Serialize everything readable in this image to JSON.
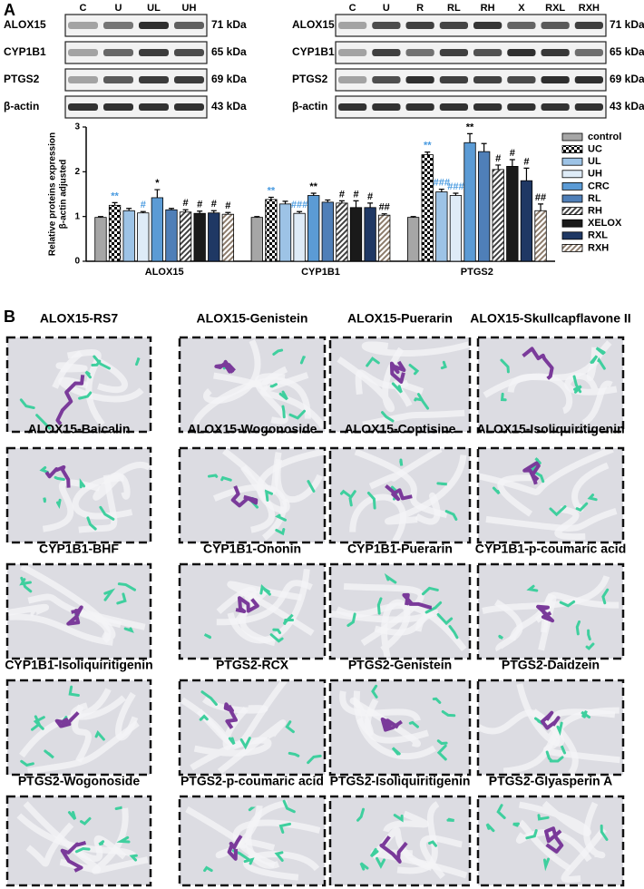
{
  "panel_a": {
    "label": "A",
    "blots": [
      {
        "lanes": [
          "C",
          "U",
          "UL",
          "UH"
        ],
        "rows": [
          {
            "protein": "ALOX15",
            "size": "71 kDa"
          },
          {
            "protein": "CYP1B1",
            "size": "65 kDa"
          },
          {
            "protein": "PTGS2",
            "size": "69 kDa"
          },
          {
            "protein": "β-actin",
            "size": "43 kDa"
          }
        ]
      },
      {
        "lanes": [
          "C",
          "U",
          "R",
          "RL",
          "RH",
          "X",
          "RXL",
          "RXH"
        ],
        "rows": [
          {
            "protein": "ALOX15",
            "size": "71 kDa"
          },
          {
            "protein": "CYP1B1",
            "size": "65 kDa"
          },
          {
            "protein": "PTGS2",
            "size": "69 kDa"
          },
          {
            "protein": "β-actin",
            "size": "43 kDa"
          }
        ]
      }
    ]
  },
  "chart_data": {
    "type": "bar",
    "ylabel": [
      "Relative proteins expression",
      "β-actin adjusted"
    ],
    "categories": [
      "ALOX15",
      "CYP1B1",
      "PTGS2"
    ],
    "ylim": [
      0,
      3
    ],
    "yticks": [
      0,
      1,
      2,
      3
    ],
    "series": [
      {
        "name": "control",
        "color": "#a6a6a6",
        "values": [
          0.98,
          0.98,
          0.98
        ],
        "errors": [
          0.02,
          0.02,
          0.02
        ],
        "labels": [
          null,
          null,
          null
        ]
      },
      {
        "name": "UC",
        "color": "#000000",
        "pattern": "checker",
        "values": [
          1.25,
          1.38,
          2.38
        ],
        "errors": [
          0.06,
          0.05,
          0.06
        ],
        "labels": [
          "**",
          "**",
          "**"
        ],
        "label_color": "#4a9be0"
      },
      {
        "name": "UL",
        "color": "#9dc3e6",
        "values": [
          1.13,
          1.28,
          1.55
        ],
        "errors": [
          0.05,
          0.06,
          0.06
        ],
        "labels": [
          null,
          null,
          "###"
        ],
        "label_color": "#4a9be0"
      },
      {
        "name": "UH",
        "color": "#deebf7",
        "values": [
          1.08,
          1.07,
          1.47
        ],
        "errors": [
          0.03,
          0.04,
          0.05
        ],
        "labels": [
          "#",
          "###",
          "###"
        ],
        "label_color": "#4a9be0"
      },
      {
        "name": "CRC",
        "color": "#5b9bd5",
        "values": [
          1.42,
          1.47,
          2.65
        ],
        "errors": [
          0.18,
          0.05,
          0.2
        ],
        "labels": [
          "*",
          "**",
          "**"
        ],
        "label_color": "#000000"
      },
      {
        "name": "RL",
        "color": "#4f7fb8",
        "values": [
          1.15,
          1.32,
          2.45
        ],
        "errors": [
          0.03,
          0.05,
          0.18
        ],
        "labels": [
          null,
          null,
          null
        ],
        "label_color": "#000000"
      },
      {
        "name": "RH",
        "color": "#404040",
        "pattern": "stripes",
        "values": [
          1.1,
          1.3,
          2.05
        ],
        "errors": [
          0.05,
          0.05,
          0.1
        ],
        "labels": [
          "#",
          "#",
          "#"
        ],
        "label_color": "#000000"
      },
      {
        "name": "XELOX",
        "color": "#1a1a1a",
        "values": [
          1.07,
          1.2,
          2.12
        ],
        "errors": [
          0.05,
          0.15,
          0.15
        ],
        "labels": [
          "#",
          "#",
          "#"
        ],
        "label_color": "#000000"
      },
      {
        "name": "RXL",
        "color": "#1f3864",
        "values": [
          1.08,
          1.2,
          1.8
        ],
        "errors": [
          0.05,
          0.1,
          0.28
        ],
        "labels": [
          "#",
          "#",
          "#"
        ],
        "label_color": "#000000"
      },
      {
        "name": "RXH",
        "color": "#8c7b6b",
        "pattern": "stripes",
        "values": [
          1.05,
          1.03,
          1.13
        ],
        "errors": [
          0.04,
          0.03,
          0.15
        ],
        "labels": [
          "#",
          "##",
          "##"
        ],
        "label_color": "#000000"
      }
    ]
  },
  "panel_b": {
    "label": "B",
    "docking": [
      {
        "title": "ALOX15-RS7"
      },
      {
        "title": "ALOX15-Genistein"
      },
      {
        "title": "ALOX15-Puerarin"
      },
      {
        "title": "ALOX15-Skullcapflavone II"
      },
      {
        "title": "ALOX15-Baicalin"
      },
      {
        "title": "ALOX15-Wogonoside"
      },
      {
        "title": "ALOX15-Coptisine"
      },
      {
        "title": "ALOX15-Isoliquiritigenin"
      },
      {
        "title": "CYP1B1-BHF"
      },
      {
        "title": "CYP1B1-Ononin"
      },
      {
        "title": "CYP1B1-Puerarin"
      },
      {
        "title": "CYP1B1-p-coumaric acid"
      },
      {
        "title": "CYP1B1-Isoliquiritigenin"
      },
      {
        "title": "PTGS2-RCX"
      },
      {
        "title": "PTGS2-Genistein"
      },
      {
        "title": "PTGS2-Daidzein"
      },
      {
        "title": "PTGS2-Wogonoside"
      },
      {
        "title": "PTGS2-p-coumaric acid"
      },
      {
        "title": "PTGS2-Isoliquiritigenin"
      },
      {
        "title": "PTGS2-Glyasperin A"
      }
    ]
  }
}
